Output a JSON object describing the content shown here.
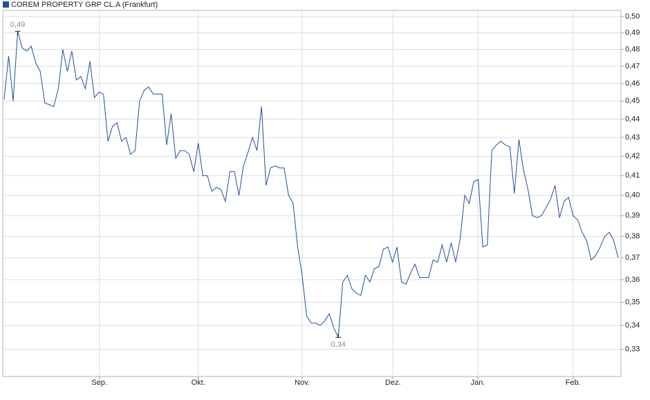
{
  "chart_data": {
    "type": "line",
    "series": [
      {
        "name": "COREM PROPERTY GRP CL.A (Frankfurt)",
        "color": "#1f4e9c",
        "values": [
          0.451,
          0.476,
          0.45,
          0.491,
          0.481,
          0.479,
          0.482,
          0.472,
          0.467,
          0.449,
          0.448,
          0.447,
          0.457,
          0.48,
          0.467,
          0.479,
          0.462,
          0.464,
          0.457,
          0.473,
          0.452,
          0.455,
          0.454,
          0.428,
          0.436,
          0.438,
          0.428,
          0.43,
          0.421,
          0.423,
          0.45,
          0.456,
          0.458,
          0.454,
          0.454,
          0.454,
          0.426,
          0.443,
          0.419,
          0.423,
          0.423,
          0.421,
          0.412,
          0.427,
          0.41,
          0.41,
          0.402,
          0.404,
          0.403,
          0.397,
          0.412,
          0.412,
          0.4,
          0.415,
          0.422,
          0.43,
          0.423,
          0.447,
          0.405,
          0.414,
          0.415,
          0.414,
          0.414,
          0.4,
          0.396,
          0.375,
          0.362,
          0.344,
          0.341,
          0.341,
          0.34,
          0.342,
          0.345,
          0.339,
          0.335,
          0.359,
          0.362,
          0.356,
          0.354,
          0.353,
          0.362,
          0.359,
          0.365,
          0.366,
          0.374,
          0.375,
          0.368,
          0.375,
          0.359,
          0.358,
          0.363,
          0.367,
          0.361,
          0.361,
          0.361,
          0.369,
          0.368,
          0.376,
          0.368,
          0.377,
          0.368,
          0.379,
          0.4,
          0.396,
          0.407,
          0.408,
          0.375,
          0.376,
          0.423,
          0.426,
          0.428,
          0.426,
          0.425,
          0.401,
          0.429,
          0.413,
          0.403,
          0.39,
          0.389,
          0.39,
          0.394,
          0.398,
          0.405,
          0.389,
          0.397,
          0.399,
          0.39,
          0.388,
          0.382,
          0.378,
          0.369,
          0.371,
          0.375,
          0.38,
          0.382,
          0.378,
          0.37
        ]
      }
    ],
    "xlim": [
      -0.3,
      136.6
    ],
    "xticks": [
      {
        "value": 21.1,
        "label": "Sep."
      },
      {
        "value": 43.0,
        "label": "Okt."
      },
      {
        "value": 66.0,
        "label": "Nov."
      },
      {
        "value": 86.1,
        "label": "Dez."
      },
      {
        "value": 104.9,
        "label": "Jan."
      },
      {
        "value": 126.0,
        "label": "Feb."
      }
    ],
    "ylim": [
      0.319,
      0.504
    ],
    "ylog": true,
    "yticks": [
      {
        "value": 0.33,
        "label": "0,33"
      },
      {
        "value": 0.34,
        "label": "0,34"
      },
      {
        "value": 0.35,
        "label": "0,35"
      },
      {
        "value": 0.36,
        "label": "0,36"
      },
      {
        "value": 0.37,
        "label": "0,37"
      },
      {
        "value": 0.38,
        "label": "0,38"
      },
      {
        "value": 0.39,
        "label": "0,39"
      },
      {
        "value": 0.4,
        "label": "0,40"
      },
      {
        "value": 0.41,
        "label": "0,41"
      },
      {
        "value": 0.42,
        "label": "0,42"
      },
      {
        "value": 0.43,
        "label": "0,43"
      },
      {
        "value": 0.44,
        "label": "0,44"
      },
      {
        "value": 0.45,
        "label": "0,45"
      },
      {
        "value": 0.46,
        "label": "0,46"
      },
      {
        "value": 0.47,
        "label": "0,47"
      },
      {
        "value": 0.48,
        "label": "0,48"
      },
      {
        "value": 0.49,
        "label": "0,49"
      },
      {
        "value": 0.5,
        "label": "0,50"
      }
    ],
    "grid": true,
    "annotations": [
      {
        "x": 3,
        "value": 0.491,
        "label": "0,49",
        "kind": "max"
      },
      {
        "x": 74,
        "value": 0.335,
        "label": "0,34",
        "kind": "min"
      }
    ]
  }
}
